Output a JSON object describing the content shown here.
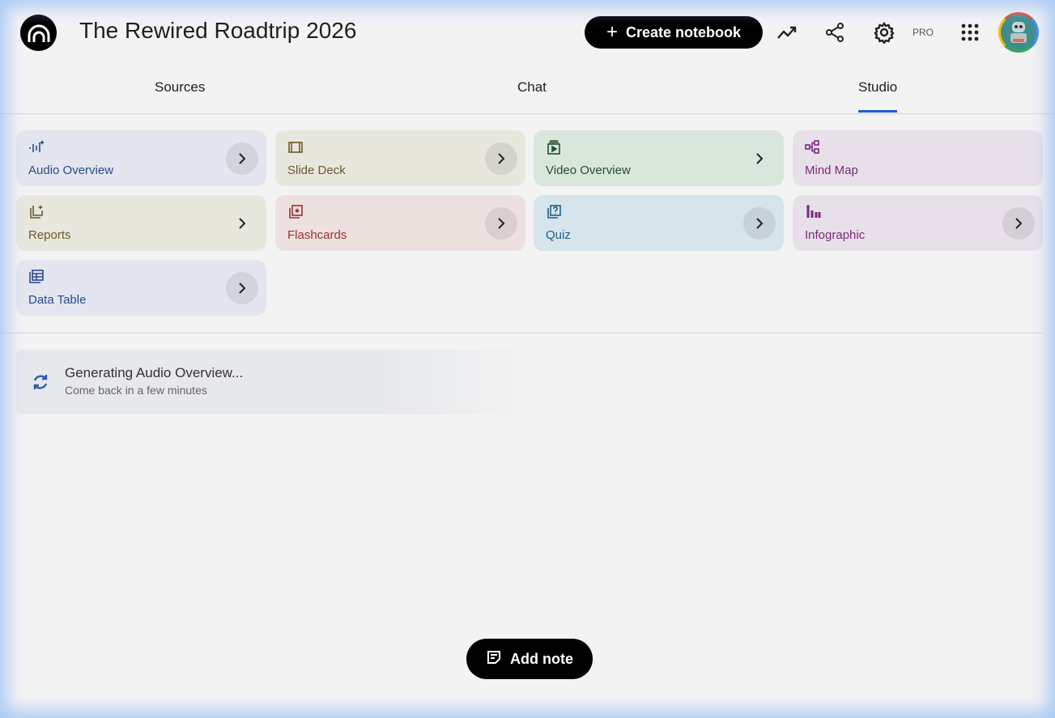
{
  "header": {
    "title": "The Rewired Roadtrip 2026",
    "create_label": "Create notebook",
    "pro_label": "PRO"
  },
  "tabs": [
    {
      "label": "Sources"
    },
    {
      "label": "Chat"
    },
    {
      "label": "Studio",
      "active": true
    }
  ],
  "studio": {
    "cards": [
      {
        "label": "Audio Overview",
        "icon": "audio-waveform-sparkle-icon",
        "color": "#2b4a8b",
        "bg": "#e3e6ef"
      },
      {
        "label": "Slide Deck",
        "icon": "slides-icon",
        "color": "#6b5a2a",
        "bg": "#e8e7de"
      },
      {
        "label": "Video Overview",
        "icon": "video-icon",
        "color": "#24502f",
        "bg": "#d8e6dc"
      },
      {
        "label": "Mind Map",
        "icon": "mind-map-icon",
        "color": "#7b2a7b",
        "bg": "#e8e0e9"
      },
      {
        "label": "Reports",
        "icon": "reports-icon",
        "color": "#6b5a2a",
        "bg": "#e8e7de"
      },
      {
        "label": "Flashcards",
        "icon": "flashcards-icon",
        "color": "#9b3030",
        "bg": "#ede1e0"
      },
      {
        "label": "Quiz",
        "icon": "quiz-icon",
        "color": "#1f5f86",
        "bg": "#d6e4ec"
      },
      {
        "label": "Infographic",
        "icon": "infographic-icon",
        "color": "#7b2a7b",
        "bg": "#e8e0e9"
      },
      {
        "label": "Data Table",
        "icon": "table-icon",
        "color": "#2b4a8b",
        "bg": "#e3e6ef"
      }
    ]
  },
  "generating": {
    "title": "Generating Audio Overview...",
    "subtitle": "Come back in a few minutes"
  },
  "add_note_label": "Add note"
}
